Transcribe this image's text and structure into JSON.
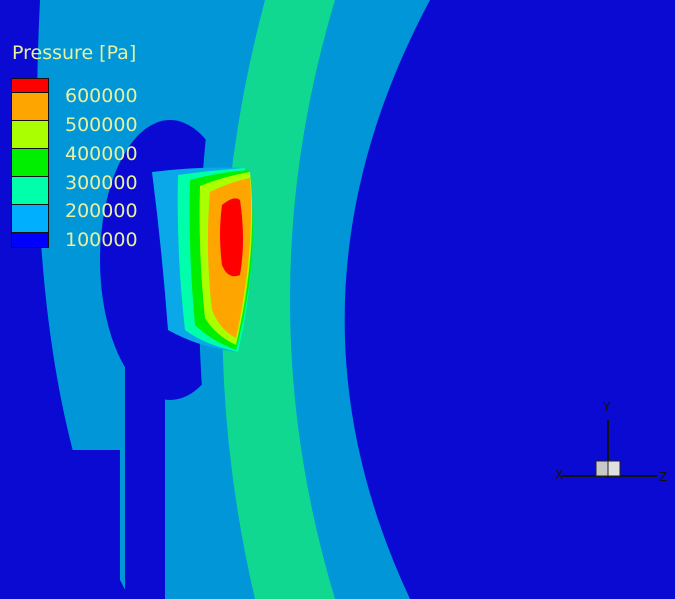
{
  "legend": {
    "title": "Pressure [Pa]",
    "levels": [
      "600000",
      "500000",
      "400000",
      "300000",
      "200000",
      "100000"
    ],
    "colors": [
      "#ff0000",
      "#ffa500",
      "#aaff00",
      "#00ee00",
      "#00ffaa",
      "#00b0ff",
      "#0000ff"
    ]
  },
  "axes": {
    "x": "X",
    "y": "Y",
    "z": "Z"
  },
  "colors": {
    "background": "#0a0ad2",
    "band_light": "#0096d8",
    "band_green": "#10d890"
  }
}
